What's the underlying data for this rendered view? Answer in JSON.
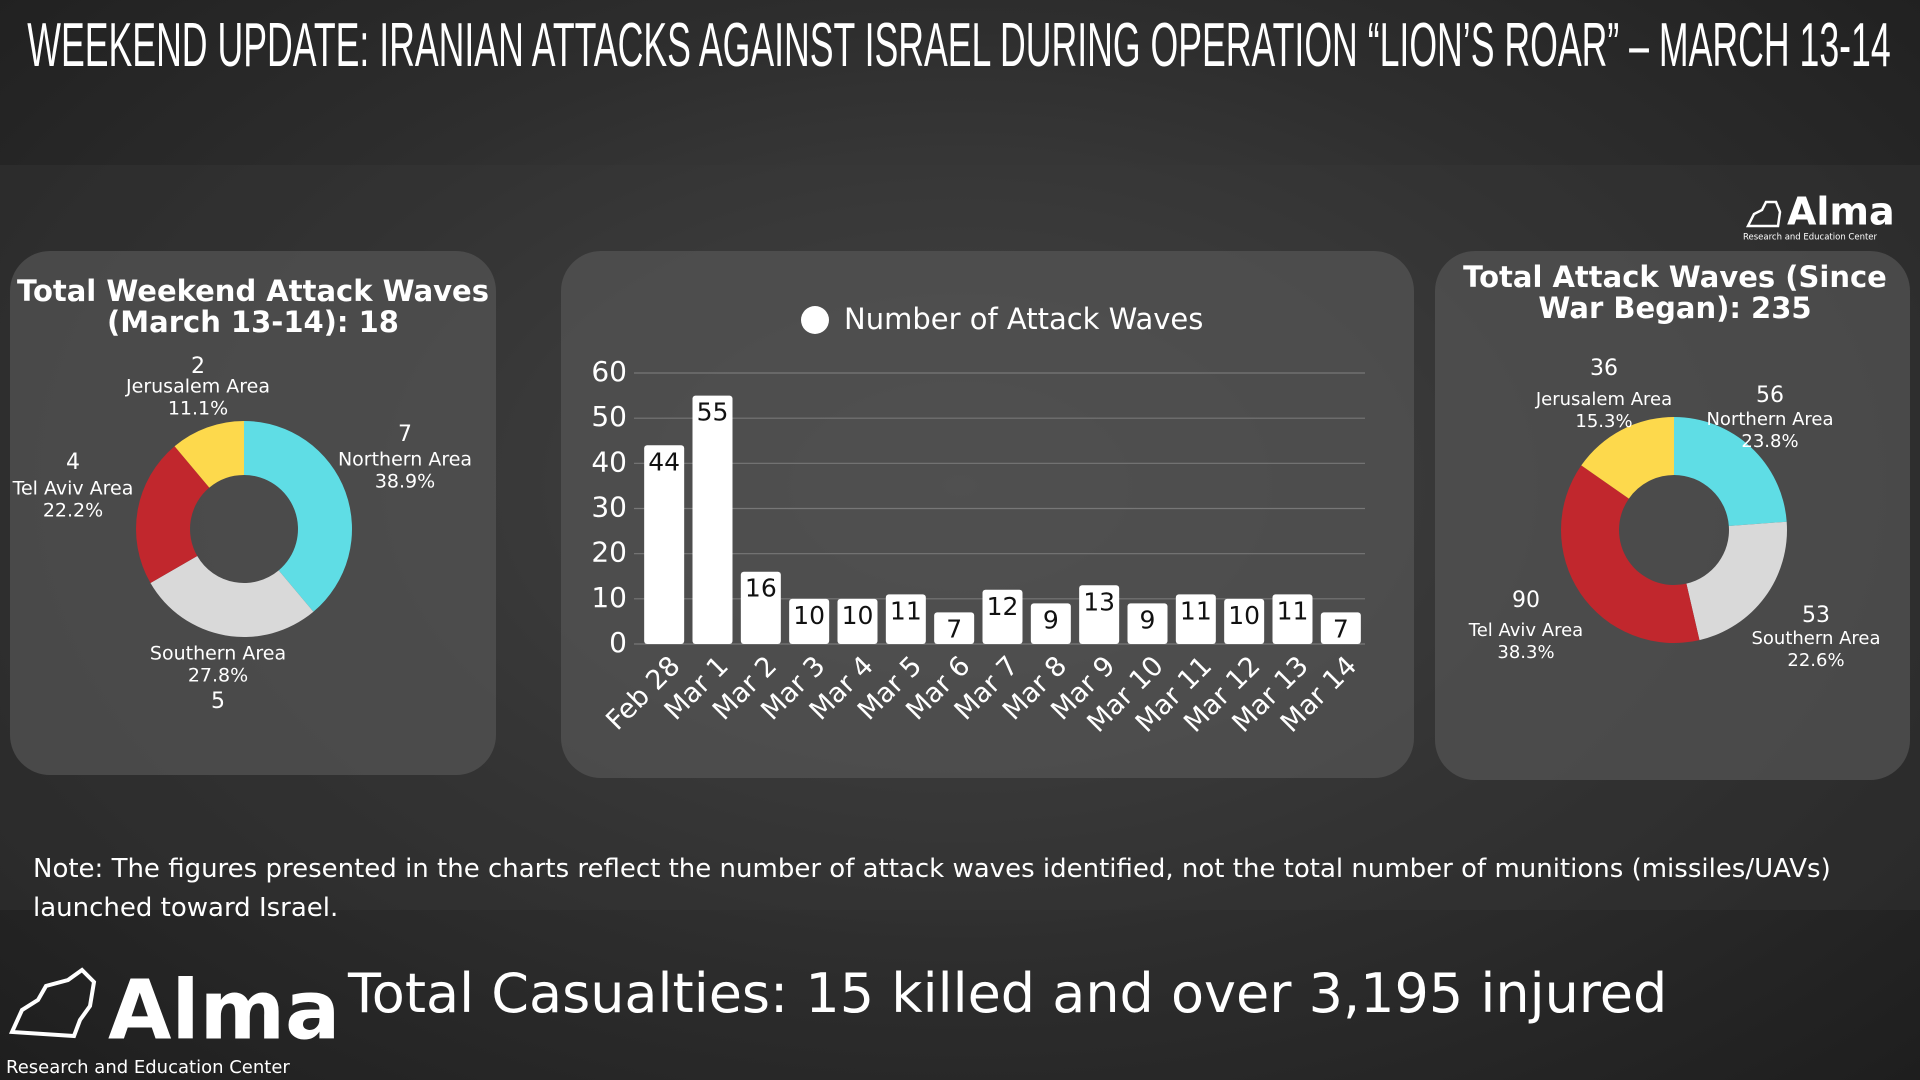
{
  "title": "WEEKEND UPDATE: IRANIAN ATTACKS AGAINST ISRAEL DURING OPERATION “LION’S ROAR” – MARCH 13-14",
  "logo": {
    "name": "Alma",
    "tagline": "Research and Education Center"
  },
  "chart_data": [
    {
      "type": "donut",
      "title": "Total Weekend Attack Waves (March 13-14): 18",
      "categories": [
        "Northern Area",
        "Southern Area",
        "Tel Aviv Area",
        "Jerusalem Area"
      ],
      "values": [
        7,
        5,
        4,
        2
      ],
      "percent_labels": [
        "38.9%",
        "27.8%",
        "22.2%",
        "11.1%"
      ],
      "colors": [
        "#5fdde5",
        "#d9d9d9",
        "#c1272d",
        "#fdd94c"
      ]
    },
    {
      "type": "bar",
      "legend": "Number of Attack Waves",
      "color": "#ffffff",
      "categories": [
        "Feb 28",
        "Mar 1",
        "Mar 2",
        "Mar 3",
        "Mar 4",
        "Mar 5",
        "Mar 6",
        "Mar 7",
        "Mar 8",
        "Mar 9",
        "Mar 10",
        "Mar 11",
        "Mar 12",
        "Mar 13",
        "Mar 14"
      ],
      "values": [
        44,
        55,
        16,
        10,
        10,
        11,
        7,
        12,
        9,
        13,
        9,
        11,
        10,
        11,
        7
      ],
      "ylim": [
        0,
        60
      ],
      "yticks": [
        0,
        10,
        20,
        30,
        40,
        50,
        60
      ],
      "grid": true
    },
    {
      "type": "donut",
      "title": "Total Attack Waves (Since War Began): 235",
      "categories": [
        "Northern Area",
        "Southern Area",
        "Tel Aviv Area",
        "Jerusalem Area"
      ],
      "values": [
        56,
        53,
        90,
        36
      ],
      "percent_labels": [
        "23.8%",
        "22.6%",
        "38.3%",
        "15.3%"
      ],
      "colors": [
        "#5fdde5",
        "#d9d9d9",
        "#c1272d",
        "#fdd94c"
      ]
    }
  ],
  "note": "Note: The figures presented in the charts reflect the number of attack waves identified, not the total number of munitions (missiles/UAVs) launched toward Israel.",
  "casualties": "Total Casualties: 15 killed and over 3,195 injured"
}
